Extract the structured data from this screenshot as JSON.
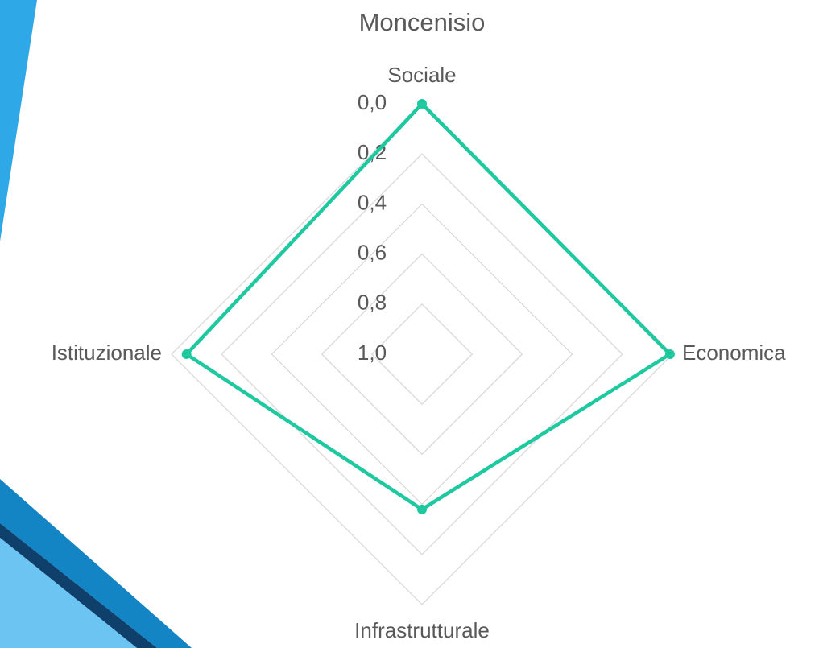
{
  "chart_data": {
    "type": "radar",
    "title": "Moncenisio",
    "categories": [
      "Sociale",
      "Economica",
      "Infrastrutturale",
      "Istituzionale"
    ],
    "series": [
      {
        "name": "Moncenisio",
        "color": "#1ec9a0",
        "values": [
          0.0,
          0.01,
          0.38,
          0.06
        ]
      }
    ],
    "ylim": [
      0,
      1
    ],
    "reversed": true,
    "yticks": [
      {
        "value": 0,
        "label": "0,0"
      },
      {
        "value": 0.2,
        "label": "0,2"
      },
      {
        "value": 0.4,
        "label": "0,4"
      },
      {
        "value": 0.6,
        "label": "0,6"
      },
      {
        "value": 0.8,
        "label": "0,8"
      },
      {
        "value": 1,
        "label": "1,0"
      }
    ],
    "grid": true
  }
}
